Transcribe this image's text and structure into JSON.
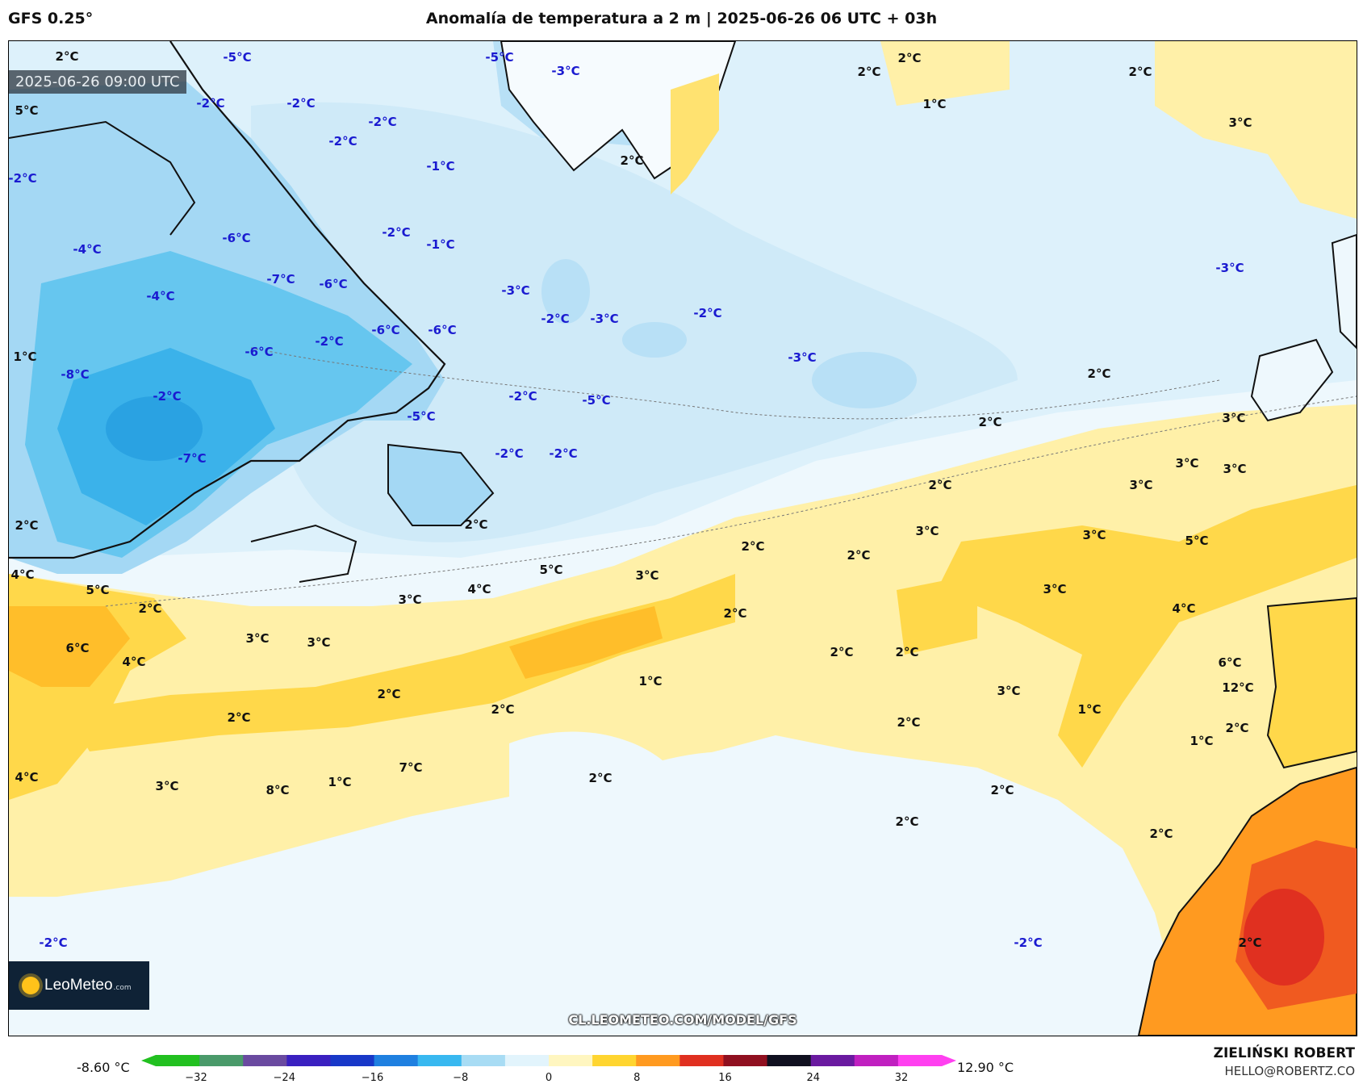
{
  "header": {
    "model": "GFS 0.25°",
    "title": "Anomalía de temperatura a 2 m | 2025-06-26 06 UTC + 03h"
  },
  "map": {
    "valid_time": "2025-06-26 09:00 UTC",
    "source_url": "CL.LEOMETEO.COM/MODEL/GFS",
    "logo": {
      "name": "LeoMeteo",
      "suffix": ".com"
    },
    "labels": [
      "-5°C",
      "-5°C",
      "-3°C",
      "-2°C",
      "-2°C",
      "-2°C",
      "-2°C",
      "-1°C",
      "-2°C",
      "-2°C",
      "-1°C",
      "-6°C",
      "-4°C",
      "-7°C",
      "-6°C",
      "-4°C",
      "-3°C",
      "-2°C",
      "-3°C",
      "-2°C",
      "-3°C",
      "-5°C",
      "-6°C",
      "-2°C",
      "-6°C",
      "-6°C",
      "-8°C",
      "-2°C",
      "-2°C",
      "-5°C",
      "-2°C",
      "-2°C",
      "-7°C",
      "-3°C",
      "-2°C",
      "-2°C",
      "2°C",
      "5°C",
      "2°C",
      "2°C",
      "2°C",
      "1°C",
      "3°C",
      "2°C",
      "2°C",
      "1°C",
      "2°C",
      "3°C",
      "3°C",
      "3°C",
      "3°C",
      "2°C",
      "3°C",
      "3°C",
      "4°C",
      "5°C",
      "2°C",
      "3°C",
      "4°C",
      "5°C",
      "3°C",
      "2°C",
      "2°C",
      "3°C",
      "2°C",
      "3°C",
      "3°C",
      "5°C",
      "4°C",
      "6°C",
      "4°C",
      "2°C",
      "2°C",
      "6°C",
      "1°C",
      "2°C",
      "2°C",
      "2°C",
      "2°C",
      "3°C",
      "3°C",
      "2°C",
      "2°C",
      "1°C",
      "2°C",
      "2°C",
      "2°C",
      "7°C",
      "8°C",
      "2°C",
      "1°C",
      "12°C",
      "1°C",
      "2°C",
      "4°C",
      "2°C"
    ]
  },
  "colorbar": {
    "min_label": "-8.60 °C",
    "max_label": "12.90 °C",
    "ticks": [
      "−32",
      "−24",
      "−16",
      "−8",
      "0",
      "8",
      "16",
      "24",
      "32"
    ],
    "colors": [
      "#22c020",
      "#4a9a6a",
      "#6a4aa0",
      "#3a20c0",
      "#1838c8",
      "#1f80e0",
      "#38b8f0",
      "#a8dcf4",
      "#e2f4fc",
      "#fff6c0",
      "#ffd530",
      "#ff9a20",
      "#e03020",
      "#901020",
      "#101020",
      "#6a1aa0",
      "#c020c0",
      "#ff40f0"
    ]
  },
  "credits": {
    "author": "ZIELIŃSKI ROBERT",
    "email": "HELLO@ROBERTZ.CO"
  }
}
